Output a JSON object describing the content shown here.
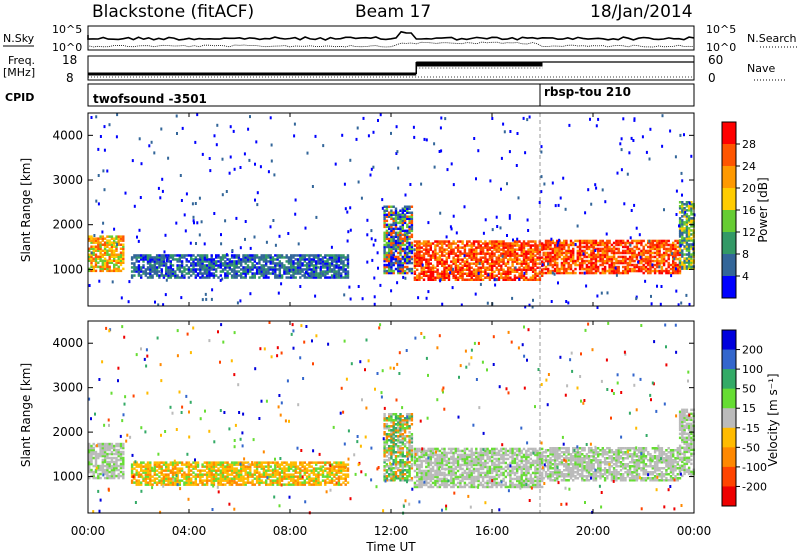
{
  "header": {
    "station": "Blackstone (fitACF)",
    "beam": "Beam 17",
    "date": "18/Jan/2014"
  },
  "top_panels": {
    "nsky_label": "N.Sky",
    "nsearch_label": "N.Search",
    "noise_ticks": [
      "10^5",
      "10^0"
    ],
    "freq_label": "Freq.",
    "freq_unit": "[MHz]",
    "freq_ticks": [
      "18",
      "8"
    ],
    "nave_label": "Nave",
    "nave_ticks": [
      "60",
      "0"
    ],
    "cpid_label": "CPID",
    "cpid_1": "twofsound -3501",
    "cpid_2": "rbsp-tou 210"
  },
  "x_axis": {
    "label": "Time UT",
    "ticks": [
      "00:00",
      "04:00",
      "08:00",
      "12:00",
      "16:00",
      "20:00",
      "00:00"
    ],
    "range_hours": [
      0,
      24
    ]
  },
  "power_colorbar": {
    "label": "Power [dB]",
    "ticks": [
      "28",
      "24",
      "20",
      "16",
      "12",
      "8",
      "4"
    ],
    "colors": [
      "#ff0000",
      "#ff5500",
      "#ff9900",
      "#ffcc00",
      "#66cc33",
      "#339966",
      "#336699",
      "#0000ff"
    ]
  },
  "velocity_colorbar": {
    "label": "Velocity [m s⁻¹]",
    "ticks": [
      "200",
      "100",
      "50",
      "15",
      "-15",
      "-50",
      "-100",
      "-200"
    ],
    "colors": [
      "#0000dd",
      "#3366cc",
      "#33aa66",
      "#66dd33",
      "#bbbbbb",
      "#ffbb00",
      "#ff8800",
      "#ff4400",
      "#ee0000"
    ]
  },
  "chart_data": [
    {
      "type": "heatmap",
      "title": "Power",
      "xlabel": "Time UT",
      "ylabel": "Slant Range [km]",
      "yticks": [
        "1000",
        "2000",
        "3000",
        "4000"
      ],
      "ylim": [
        180,
        4500
      ],
      "xlim": [
        0,
        24
      ],
      "bands": [
        {
          "t0": 0.0,
          "t1": 1.4,
          "r0": 950,
          "r1": 1750,
          "level": "mid-high"
        },
        {
          "t0": 1.7,
          "t1": 10.3,
          "r0": 800,
          "r1": 1300,
          "level": "low"
        },
        {
          "t0": 11.7,
          "t1": 12.8,
          "r0": 900,
          "r1": 2400,
          "level": "mixed"
        },
        {
          "t0": 12.9,
          "t1": 18.0,
          "r0": 750,
          "r1": 1650,
          "level": "high"
        },
        {
          "t0": 18.0,
          "t1": 23.4,
          "r0": 900,
          "r1": 1650,
          "level": "high"
        },
        {
          "t0": 23.4,
          "t1": 24.0,
          "r0": 1000,
          "r1": 2500,
          "level": "mid"
        }
      ]
    },
    {
      "type": "heatmap",
      "title": "Velocity",
      "xlabel": "Time UT",
      "ylabel": "Slant Range [km]",
      "yticks": [
        "1000",
        "2000",
        "3000",
        "4000"
      ],
      "ylim": [
        180,
        4500
      ],
      "xlim": [
        0,
        24
      ],
      "bands": [
        {
          "t0": 0.0,
          "t1": 1.4,
          "r0": 950,
          "r1": 1750,
          "level": "ground"
        },
        {
          "t0": 1.7,
          "t1": 10.3,
          "r0": 800,
          "r1": 1300,
          "level": "away"
        },
        {
          "t0": 11.7,
          "t1": 12.8,
          "r0": 900,
          "r1": 2400,
          "level": "toward"
        },
        {
          "t0": 12.9,
          "t1": 18.0,
          "r0": 750,
          "r1": 1650,
          "level": "ground"
        },
        {
          "t0": 18.0,
          "t1": 23.4,
          "r0": 900,
          "r1": 1650,
          "level": "ground"
        },
        {
          "t0": 23.4,
          "t1": 24.0,
          "r0": 1000,
          "r1": 2500,
          "level": "ground"
        }
      ]
    }
  ]
}
